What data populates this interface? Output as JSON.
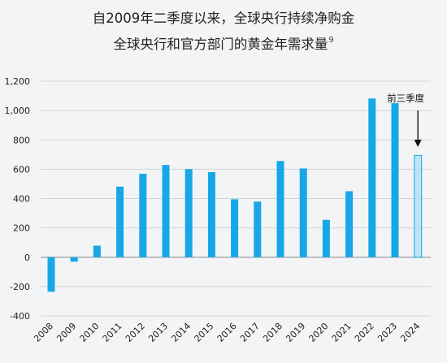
{
  "title_line1": "自2009年二季度以来，全球央行持续净购金",
  "title_line2": "全球央行和官方部门的黄金年需求量",
  "title_footnote": "9",
  "chart_data": {
    "type": "bar",
    "title": "自2009年二季度以来，全球央行持续净购金 全球央行和官方部门的黄金年需求量",
    "categories": [
      "2008",
      "2009",
      "2010",
      "2011",
      "2012",
      "2013",
      "2014",
      "2015",
      "2016",
      "2017",
      "2018",
      "2019",
      "2020",
      "2021",
      "2022",
      "2023",
      "2024"
    ],
    "values": [
      -235,
      -30,
      79,
      481,
      569,
      629,
      601,
      580,
      395,
      379,
      656,
      605,
      255,
      450,
      1082,
      1050,
      694
    ],
    "ylim": [
      -400,
      1200
    ],
    "yticks": [
      -400,
      -200,
      0,
      200,
      400,
      600,
      800,
      1000,
      1200
    ],
    "ytick_labels": [
      "-400",
      "-200",
      "0",
      "200",
      "400",
      "600",
      "800",
      "1,000",
      "1,200"
    ],
    "grid": true,
    "annotation": "前三季度",
    "annotated_category": "2024",
    "colors": {
      "bar": "#17a7e6",
      "highlight_fill": "#bfe3f6",
      "highlight_stroke": "#17a7e6",
      "grid": "#cfd2d6",
      "zero_line": "#9a9da1",
      "axis_text": "#222222"
    }
  }
}
